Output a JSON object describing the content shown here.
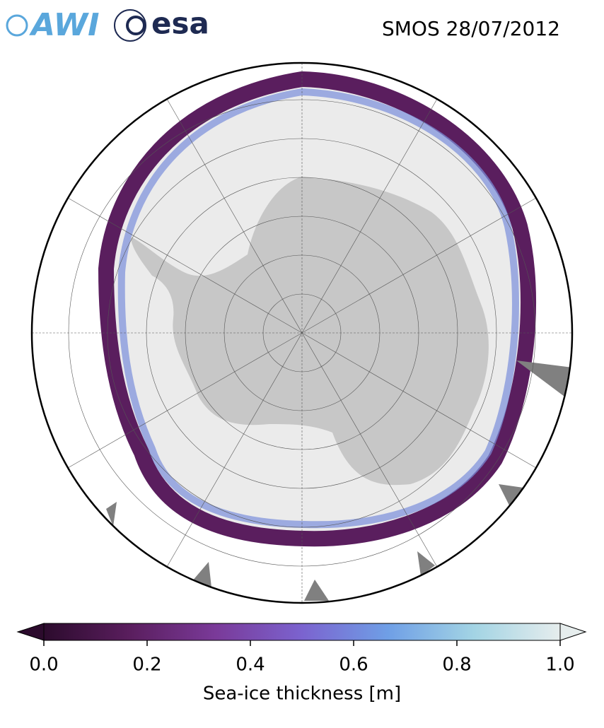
{
  "title": "SMOS 28/07/2012",
  "logos": {
    "awi": "AWI",
    "esa": "esa"
  },
  "colorbar": {
    "label": "Sea-ice thickness [m]",
    "lim": [
      0,
      1
    ],
    "ticks": [
      {
        "value": 0,
        "label": "0.0"
      },
      {
        "value": 0.2,
        "label": "0.2"
      },
      {
        "value": 0.4,
        "label": "0.4"
      },
      {
        "value": 0.6,
        "label": "0.6"
      },
      {
        "value": 0.8,
        "label": "0.8"
      },
      {
        "value": 1,
        "label": "1.0"
      }
    ],
    "colors": [
      "#2c0b2d",
      "#5a1e5e",
      "#7a3a99",
      "#7b63cf",
      "#6f9fe6",
      "#a3d4e4",
      "#e6eded"
    ]
  }
}
